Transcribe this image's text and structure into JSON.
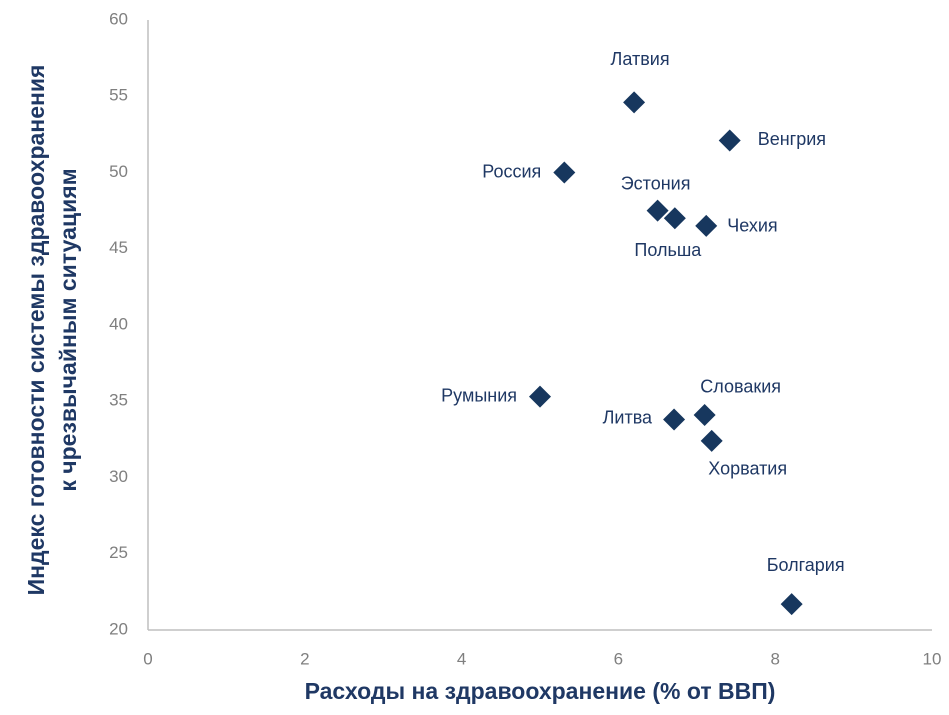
{
  "chart_data": {
    "type": "scatter",
    "xlabel": "Расходы на здравоохранение (% от ВВП)",
    "ylabel": [
      "Индекс готовности системы здравоохранения",
      "к чрезвычайным ситуациям"
    ],
    "color": "#17375e",
    "series": [
      {
        "name": null,
        "color": "#17375e",
        "labels": [
          "Латвия",
          "Венгрия",
          "Россия",
          "Эстония",
          "Польша",
          "Чехия",
          "Румыния",
          "Словакия",
          "Литва",
          "Хорватия",
          "Болгария"
        ],
        "x": [
          6.2,
          7.42,
          5.31,
          6.5,
          6.72,
          7.12,
          5.0,
          7.1,
          6.71,
          7.19,
          8.21
        ],
        "values": [
          54.6,
          52.1,
          50.0,
          47.5,
          47.0,
          46.5,
          35.3,
          34.1,
          33.8,
          32.4,
          21.7
        ]
      }
    ],
    "xlim": [
      0,
      10
    ],
    "xticks": [
      0,
      2,
      4,
      6,
      8,
      10
    ],
    "ylim": [
      20,
      60
    ],
    "yticks": [
      20,
      25,
      30,
      35,
      40,
      45,
      50,
      55,
      60
    ],
    "grid": false
  }
}
